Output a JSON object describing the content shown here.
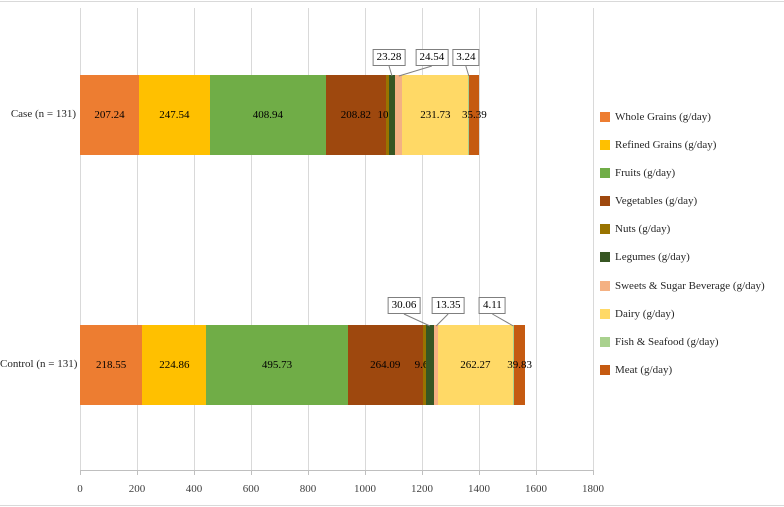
{
  "figure": {
    "background": "#ffffff"
  },
  "chart_data": {
    "type": "bar",
    "variant": "horizontal-stacked",
    "title": "",
    "xlabel": "",
    "ylabel": "",
    "categories": [
      "Case (n = 131)",
      "Control (n = 131)"
    ],
    "series": [
      {
        "name": "Whole Grains (g/day)",
        "color": "#ED7D31",
        "values": [
          207.24,
          218.55
        ],
        "labels": [
          "207.24",
          "218.55"
        ]
      },
      {
        "name": "Refined Grains (g/day)",
        "color": "#FFC000",
        "values": [
          247.54,
          224.86
        ],
        "labels": [
          "247.54",
          "224.86"
        ]
      },
      {
        "name": "Fruits (g/day)",
        "color": "#70AD47",
        "values": [
          408.94,
          495.73
        ],
        "labels": [
          "408.94",
          "495.73"
        ]
      },
      {
        "name": "Vegetables (g/day)",
        "color": "#9E480E",
        "values": [
          208.82,
          264.09
        ],
        "labels": [
          "208.82",
          "264.09"
        ]
      },
      {
        "name": "Nuts (g/day)",
        "color": "#997300",
        "values": [
          10.6,
          9.64
        ],
        "labels": [
          "10.6",
          "9.64"
        ]
      },
      {
        "name": "Legumes (g/day)",
        "color": "#375623",
        "values": [
          23.28,
          30.06
        ],
        "labels": [
          "23.28",
          "30.06"
        ]
      },
      {
        "name": "Sweets & Sugar Beverage (g/day)",
        "color": "#F4B183",
        "values": [
          24.54,
          13.35
        ],
        "labels": [
          "24.54",
          "13.35"
        ]
      },
      {
        "name": "Dairy (g/day)",
        "color": "#FFD966",
        "values": [
          231.73,
          262.27
        ],
        "labels": [
          "231.73",
          "262.27"
        ]
      },
      {
        "name": "Fish & Seafood (g/day)",
        "color": "#A9D18E",
        "values": [
          3.24,
          4.11
        ],
        "labels": [
          "3.24",
          "4.11"
        ]
      },
      {
        "name": "Meat (g/day)",
        "color": "#C55A11",
        "values": [
          35.39,
          39.83
        ],
        "labels": [
          "35.39",
          "39.83"
        ]
      }
    ],
    "callout_series": [
      "Legumes (g/day)",
      "Sweets & Sugar Beverage (g/day)",
      "Fish & Seafood (g/day)"
    ],
    "x_axis": {
      "min": 0,
      "max": 1800,
      "step": 200,
      "ticks": [
        "0",
        "200",
        "400",
        "600",
        "800",
        "1000",
        "1200",
        "1400",
        "1600",
        "1800"
      ]
    },
    "legend_position": "right",
    "grid": true,
    "gridline_color": "#D9D9D9",
    "axis_color": "#BFBFBF",
    "callout_border_color": "#7F7F7F"
  }
}
